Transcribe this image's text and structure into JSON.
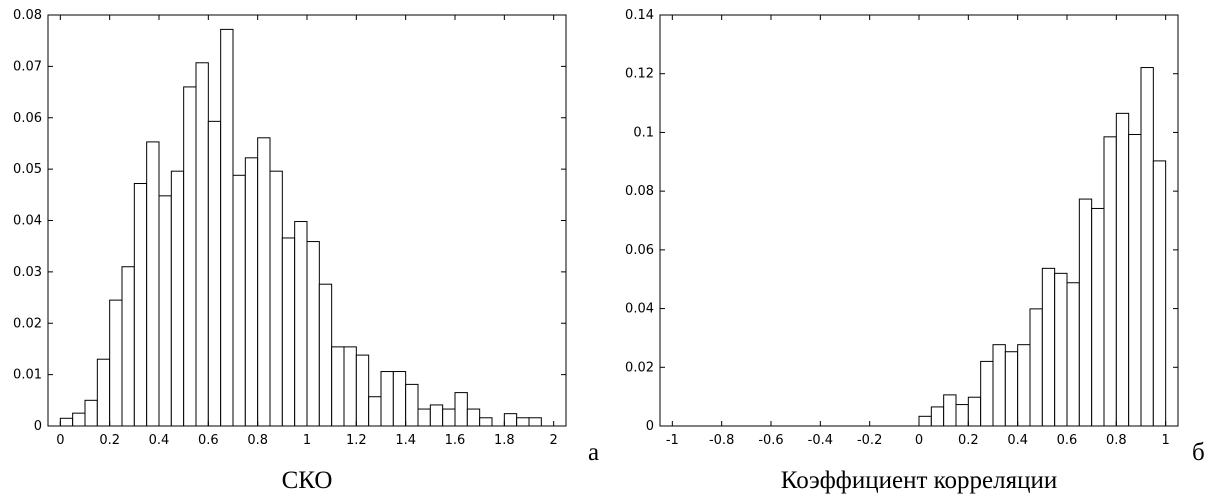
{
  "chart_data": [
    {
      "type": "bar",
      "panel_label": "а",
      "xlabel": "СКО",
      "ylabel": "",
      "xlim": [
        -0.05,
        2.05
      ],
      "ylim": [
        0,
        0.08
      ],
      "xticks": [
        "0",
        "0.2",
        "0.4",
        "0.6",
        "0.8",
        "1",
        "1.2",
        "1.4",
        "1.6",
        "1.8",
        "2"
      ],
      "yticks": [
        "0",
        "0.01",
        "0.02",
        "0.03",
        "0.04",
        "0.05",
        "0.06",
        "0.07",
        "0.08"
      ],
      "bar_width": 0.05,
      "x": [
        0.025,
        0.075,
        0.125,
        0.175,
        0.225,
        0.275,
        0.325,
        0.375,
        0.425,
        0.475,
        0.525,
        0.575,
        0.625,
        0.675,
        0.725,
        0.775,
        0.825,
        0.875,
        0.925,
        0.975,
        1.025,
        1.075,
        1.125,
        1.175,
        1.225,
        1.275,
        1.325,
        1.375,
        1.425,
        1.475,
        1.525,
        1.575,
        1.625,
        1.675,
        1.725,
        1.775,
        1.825,
        1.875,
        1.925
      ],
      "values": [
        0.0015,
        0.0025,
        0.005,
        0.013,
        0.0245,
        0.031,
        0.0472,
        0.0553,
        0.0448,
        0.0496,
        0.066,
        0.0707,
        0.0593,
        0.0772,
        0.0488,
        0.0522,
        0.0561,
        0.0496,
        0.0366,
        0.0398,
        0.0359,
        0.0276,
        0.0154,
        0.0154,
        0.0138,
        0.0057,
        0.0106,
        0.0106,
        0.0081,
        0.0033,
        0.0041,
        0.0033,
        0.0065,
        0.0033,
        0.0016,
        0.0,
        0.0024,
        0.0016,
        0.0016
      ],
      "grid": false
    },
    {
      "type": "bar",
      "panel_label": "б",
      "xlabel": "Коэффициент корреляции",
      "ylabel": "",
      "xlim": [
        -1.05,
        1.05
      ],
      "ylim": [
        0,
        0.14
      ],
      "xticks": [
        "-1",
        "-0.8",
        "-0.6",
        "-0.4",
        "-0.2",
        "0",
        "0.2",
        "0.4",
        "0.6",
        "0.8",
        "1"
      ],
      "yticks": [
        "0",
        "0.02",
        "0.04",
        "0.06",
        "0.08",
        "0.1",
        "0.12",
        "0.14"
      ],
      "bar_width": 0.05,
      "x": [
        -0.975,
        -0.925,
        -0.875,
        -0.825,
        -0.775,
        -0.725,
        -0.675,
        -0.625,
        -0.575,
        -0.525,
        -0.475,
        -0.425,
        -0.375,
        -0.325,
        -0.275,
        -0.225,
        -0.175,
        -0.125,
        -0.075,
        -0.025,
        0.025,
        0.075,
        0.125,
        0.175,
        0.225,
        0.275,
        0.325,
        0.375,
        0.425,
        0.475,
        0.525,
        0.575,
        0.625,
        0.675,
        0.725,
        0.775,
        0.825,
        0.875,
        0.925,
        0.975
      ],
      "values": [
        0,
        0,
        0,
        0,
        0,
        0,
        0,
        0,
        0,
        0,
        0,
        0,
        0,
        0,
        0,
        0,
        0,
        0,
        0,
        0,
        0.0033,
        0.0065,
        0.0106,
        0.0073,
        0.0098,
        0.022,
        0.0277,
        0.0253,
        0.0277,
        0.0399,
        0.0537,
        0.052,
        0.0488,
        0.0773,
        0.0741,
        0.0985,
        0.1065,
        0.0993,
        0.1221,
        0.0903
      ],
      "grid": false
    }
  ]
}
